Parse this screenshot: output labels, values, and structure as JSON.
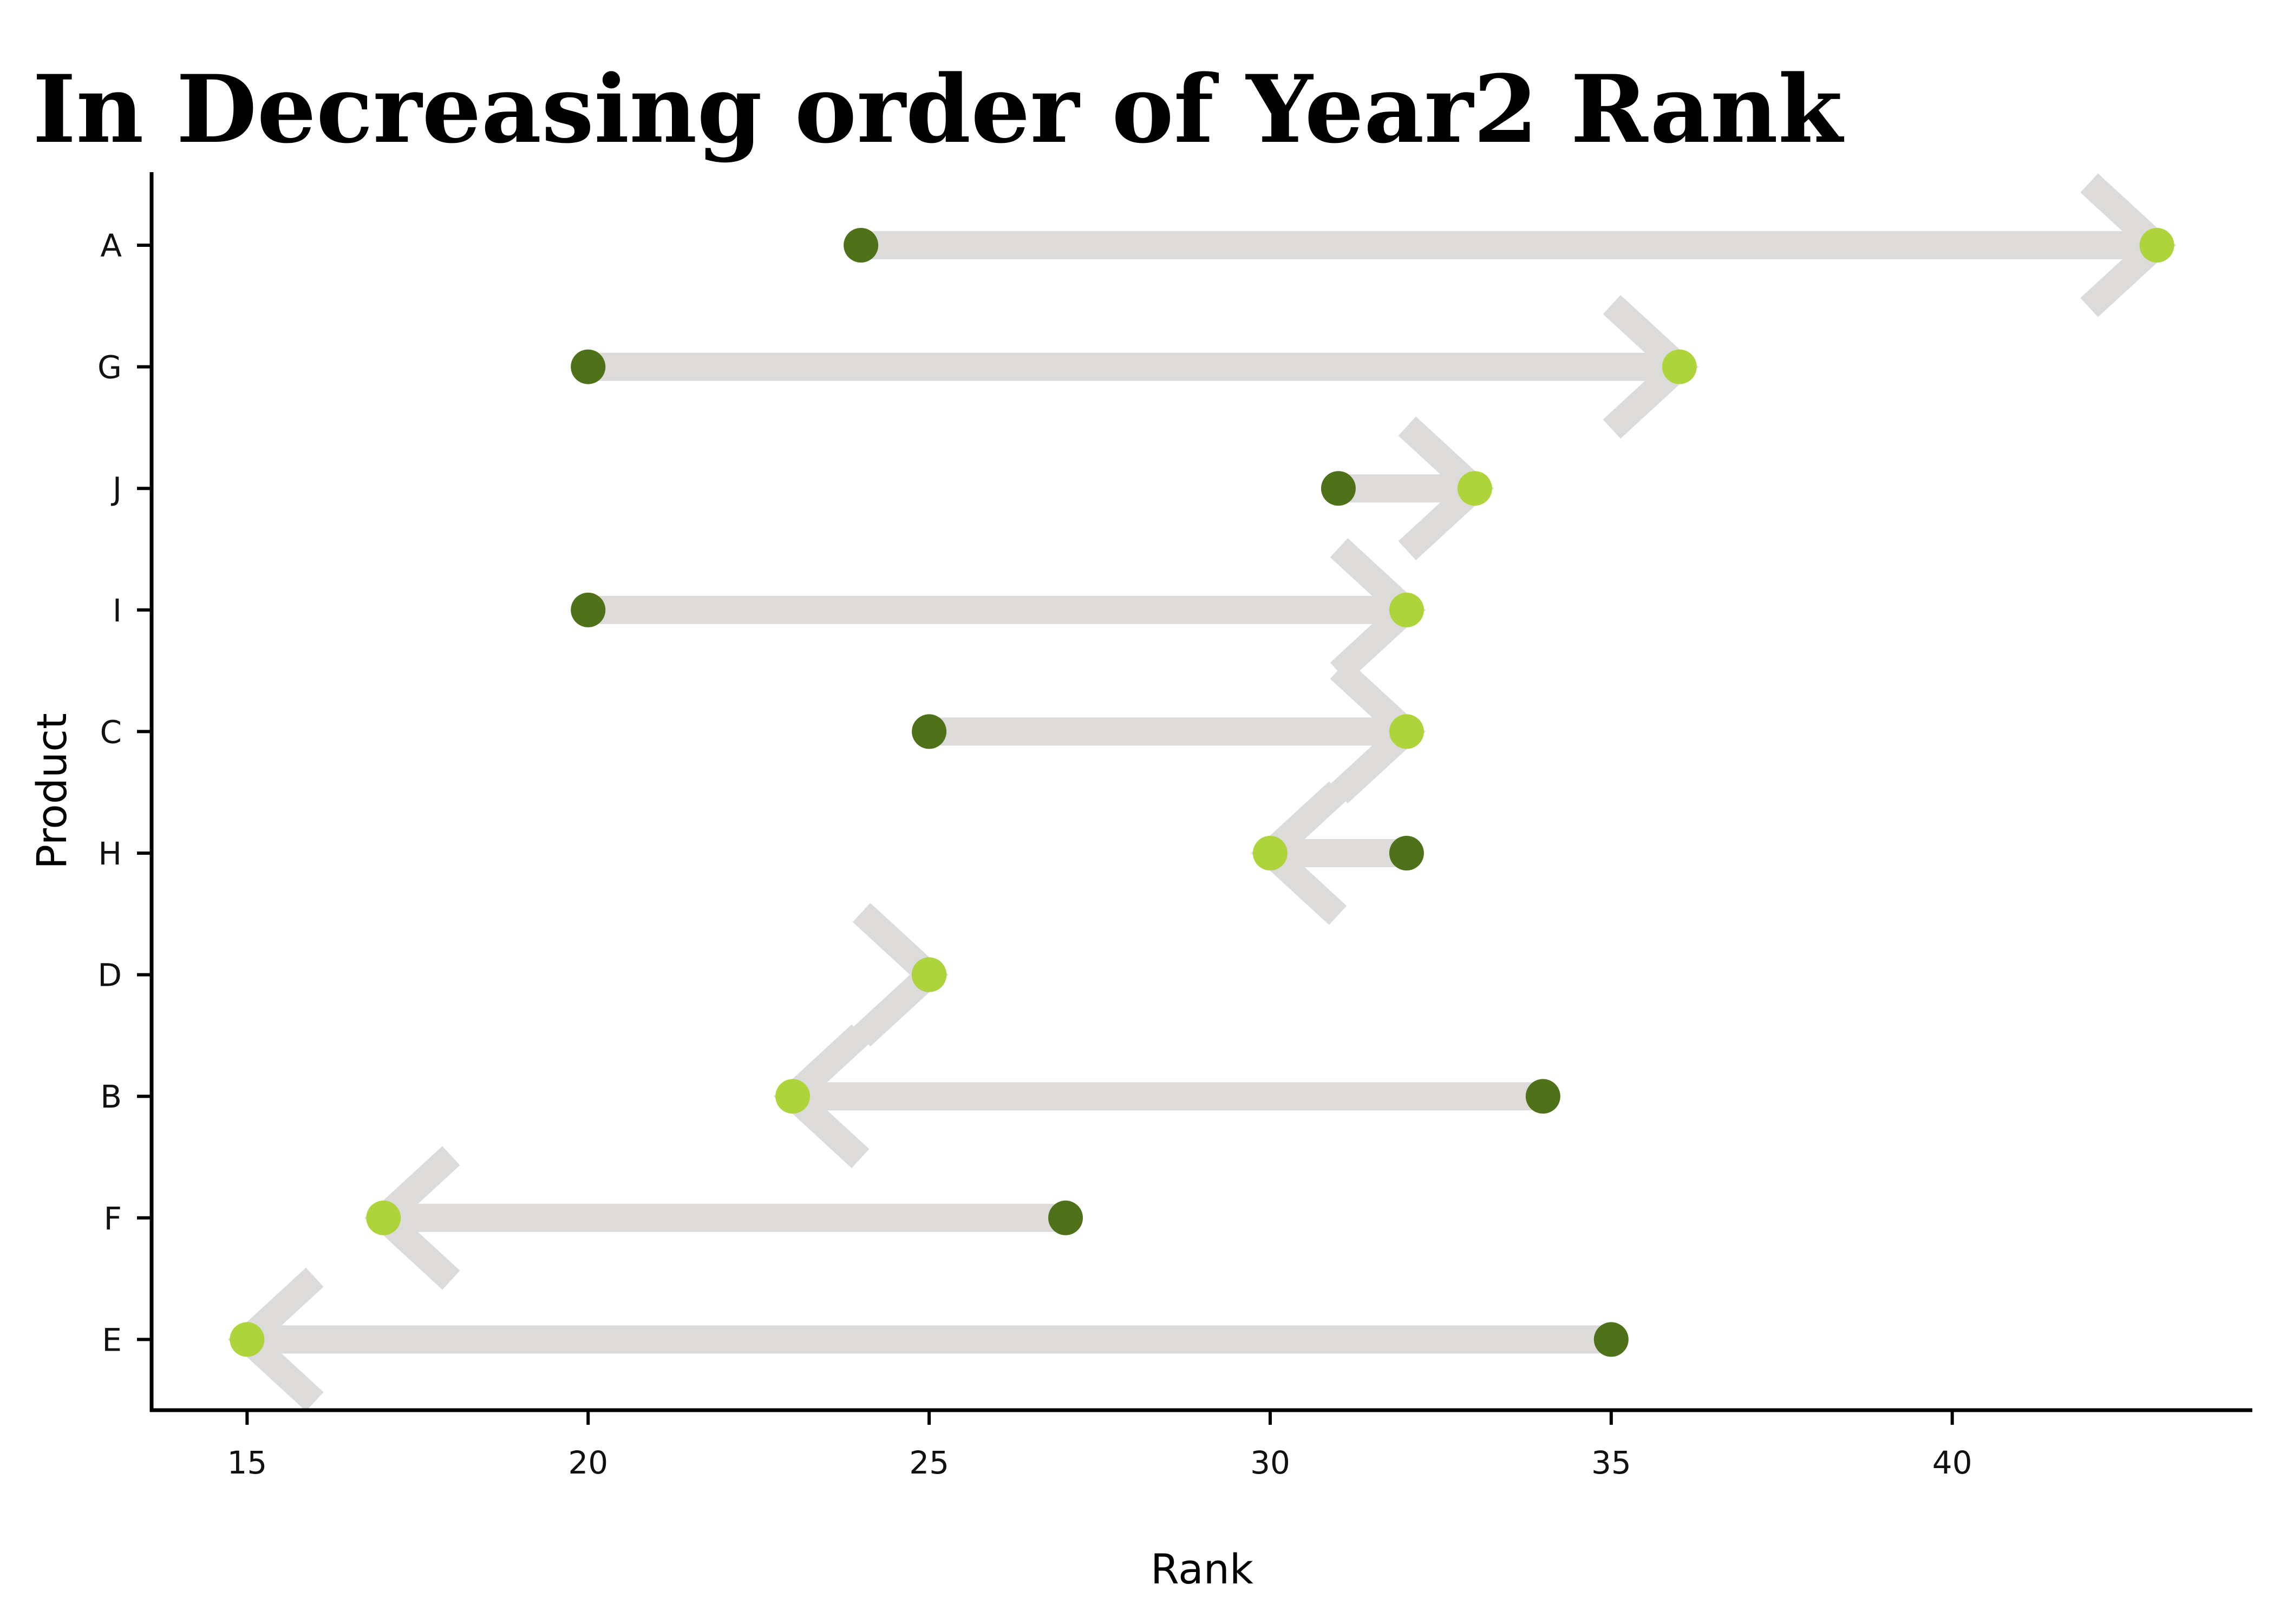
{
  "chart_data": {
    "type": "arrow-dumbbell",
    "title": "In Decreasing order of Year2 Rank",
    "xlabel": "Rank",
    "ylabel": "Product",
    "xlim": [
      13.6,
      44.4
    ],
    "x_ticks": [
      15,
      20,
      25,
      30,
      35,
      40
    ],
    "grid": false,
    "legend": "none",
    "categories": [
      "A",
      "G",
      "J",
      "I",
      "C",
      "H",
      "D",
      "B",
      "F",
      "E"
    ],
    "series": [
      {
        "values": [
          24,
          20,
          31,
          20,
          25,
          32,
          25,
          34,
          27,
          35
        ]
      },
      {
        "values": [
          43,
          36,
          33,
          32,
          32,
          30,
          25,
          23,
          17,
          15
        ]
      }
    ],
    "colors": {
      "start": "#4e7119",
      "end": "#add53b",
      "arrow": "#dcdbd9",
      "axis": "#000000"
    }
  }
}
